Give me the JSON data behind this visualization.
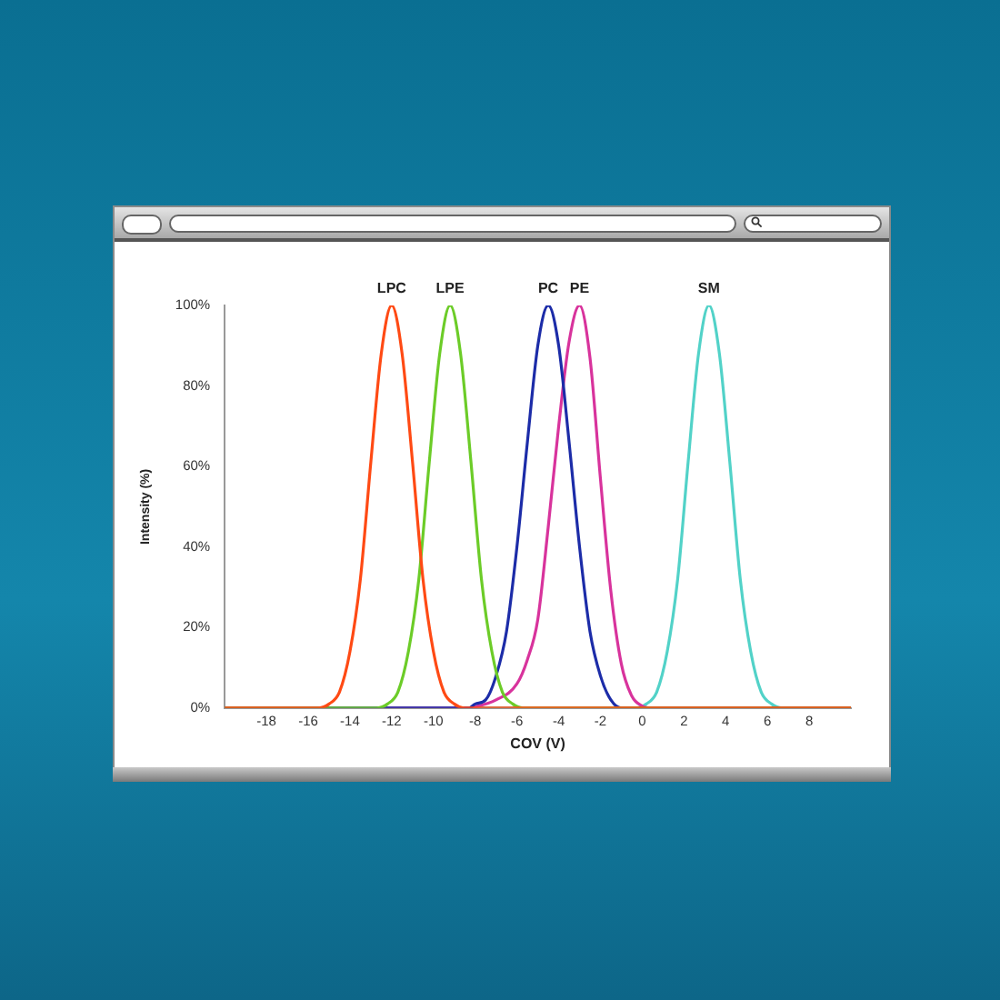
{
  "chart_data": {
    "type": "line",
    "xlabel": "COV (V)",
    "ylabel": "Intensity (%)",
    "xlim": [
      -20,
      10
    ],
    "xticks": [
      -18,
      -16,
      -14,
      -12,
      -10,
      -8,
      -6,
      -4,
      -2,
      0,
      2,
      4,
      6,
      8
    ],
    "ylim": [
      0,
      100
    ],
    "yticks": [
      {
        "value": 0,
        "label": "0%"
      },
      {
        "value": 20,
        "label": "20%"
      },
      {
        "value": 40,
        "label": "40%"
      },
      {
        "value": 60,
        "label": "60%"
      },
      {
        "value": 80,
        "label": "80%"
      },
      {
        "value": 100,
        "label": "100%"
      }
    ],
    "grid": false,
    "legend": false,
    "marker": "none",
    "line_style": "solid",
    "series": [
      {
        "name": "LPC",
        "color": "#ff4a14",
        "x": [
          -20,
          -15.5,
          -15,
          -14.5,
          -14,
          -13.5,
          -13,
          -12.5,
          -12,
          -11.5,
          -11,
          -10.5,
          -10,
          -9.5,
          -9,
          -8.5,
          -8,
          10
        ],
        "values": [
          0,
          0,
          1,
          4,
          14,
          32,
          61,
          88,
          100,
          88,
          61,
          32,
          14,
          4,
          1,
          0,
          0,
          0
        ]
      },
      {
        "name": "LPE",
        "color": "#6ccc28",
        "x": [
          -20,
          -12.7,
          -12.2,
          -11.7,
          -11.2,
          -10.7,
          -10.2,
          -9.7,
          -9.2,
          -8.7,
          -8.2,
          -7.7,
          -7.2,
          -6.7,
          -6.2,
          -5.7,
          10
        ],
        "values": [
          0,
          0,
          1,
          4,
          14,
          32,
          61,
          88,
          100,
          88,
          61,
          32,
          14,
          4,
          1,
          0,
          0
        ]
      },
      {
        "name": "PC",
        "color": "#1c2ca8",
        "x": [
          -20,
          -8.3,
          -8,
          -7.5,
          -7,
          -6.5,
          -6,
          -5.5,
          -5,
          -4.5,
          -4,
          -3.5,
          -3,
          -2.5,
          -2,
          -1.5,
          -1,
          10
        ],
        "values": [
          0,
          0,
          1,
          2,
          8,
          19,
          40,
          66,
          90,
          100,
          90,
          66,
          40,
          19,
          8,
          2,
          0,
          0
        ]
      },
      {
        "name": "PE",
        "color": "#d8339c",
        "x": [
          -20,
          -8.5,
          -8,
          -7,
          -6,
          -5.5,
          -5,
          -4.5,
          -4,
          -3.5,
          -3,
          -2.5,
          -2,
          -1.5,
          -1,
          -0.5,
          0,
          0.5,
          10
        ],
        "values": [
          0,
          0,
          0.3,
          2,
          6,
          12,
          22,
          45,
          70,
          91,
          100,
          87,
          57,
          29,
          11,
          3,
          0.5,
          0,
          0
        ]
      },
      {
        "name": "SM",
        "color": "#52d2c8",
        "x": [
          -20,
          -0.3,
          0.2,
          0.7,
          1.2,
          1.7,
          2.2,
          2.7,
          3.2,
          3.7,
          4.2,
          4.7,
          5.2,
          5.7,
          6.2,
          6.7,
          10
        ],
        "values": [
          0,
          0,
          1,
          4,
          14,
          32,
          61,
          88,
          100,
          88,
          61,
          32,
          14,
          4,
          1,
          0,
          0
        ]
      }
    ]
  }
}
